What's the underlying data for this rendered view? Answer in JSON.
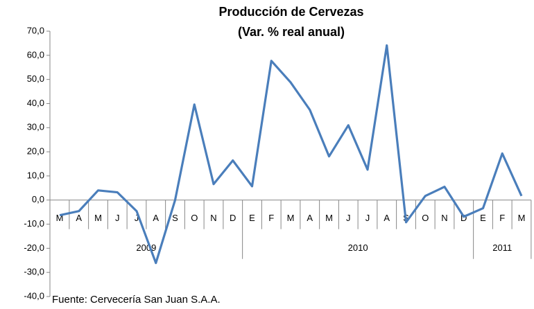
{
  "chart_data": {
    "type": "line",
    "title": "Producción de Cervezas",
    "subtitle": "(Var. % real anual)",
    "source": "Fuente: Cervecería San Juan S.A.A.",
    "categories": [
      "M",
      "A",
      "M",
      "J",
      "J",
      "A",
      "S",
      "O",
      "N",
      "D",
      "E",
      "F",
      "M",
      "A",
      "M",
      "J",
      "J",
      "A",
      "S",
      "O",
      "N",
      "D",
      "E",
      "F",
      "M"
    ],
    "x_groups": [
      {
        "label": "2009",
        "start": 0,
        "end": 9
      },
      {
        "label": "2010",
        "start": 10,
        "end": 21
      },
      {
        "label": "2011",
        "start": 22,
        "end": 24
      }
    ],
    "series": [
      {
        "name": "Producción de Cervezas",
        "color": "#4a7ebb",
        "values": [
          -6.3,
          -4.6,
          4.0,
          3.2,
          -4.6,
          -26.1,
          0.0,
          39.6,
          6.6,
          16.4,
          5.7,
          57.7,
          48.8,
          37.4,
          18.1,
          31.0,
          12.6,
          64.1,
          -9.2,
          1.7,
          5.5,
          -6.9,
          -3.4,
          19.3,
          1.7
        ]
      }
    ],
    "ylim": [
      -40,
      70
    ],
    "yticks": [
      {
        "value": -40,
        "label": "-40,0"
      },
      {
        "value": -30,
        "label": "-30,0"
      },
      {
        "value": -20,
        "label": "-20,0"
      },
      {
        "value": -10,
        "label": "-10,0"
      },
      {
        "value": 0,
        "label": "0,0"
      },
      {
        "value": 10,
        "label": "10,0"
      },
      {
        "value": 20,
        "label": "20,0"
      },
      {
        "value": 30,
        "label": "30,0"
      },
      {
        "value": 40,
        "label": "40,0"
      },
      {
        "value": 50,
        "label": "50,0"
      },
      {
        "value": 60,
        "label": "60,0"
      },
      {
        "value": 70,
        "label": "70,0"
      }
    ],
    "grid": false
  }
}
